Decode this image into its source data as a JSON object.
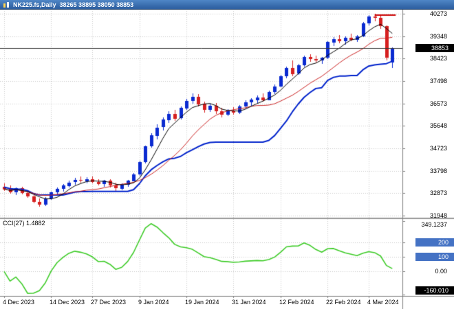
{
  "window": {
    "title": "NK225.fs,Daily",
    "ohlc": "38265 38895 38050 38853"
  },
  "chart_data": {
    "type": "candlestick",
    "symbol": "NK225.fs",
    "timeframe": "Daily",
    "last_ohlc": {
      "open": 38265,
      "high": 38895,
      "low": 38050,
      "close": 38853
    },
    "price_axis": {
      "ticks": [
        40273,
        39348,
        38423,
        37498,
        36573,
        35648,
        34723,
        33798,
        32873,
        31948
      ],
      "current_price": 38853
    },
    "x_ticks": [
      {
        "index": 0,
        "label": "4 Dec 2023"
      },
      {
        "index": 8,
        "label": "14 Dec 2023"
      },
      {
        "index": 15,
        "label": "27 Dec 2023"
      },
      {
        "index": 23,
        "label": "9 Jan 2024"
      },
      {
        "index": 31,
        "label": "19 Jan 2024"
      },
      {
        "index": 39,
        "label": "31 Jan 2024"
      },
      {
        "index": 47,
        "label": "12 Feb 2024"
      },
      {
        "index": 55,
        "label": "22 Feb 2024"
      },
      {
        "index": 62,
        "label": "4 Mar 2024"
      }
    ],
    "candles": [
      [
        33150,
        33270,
        32980,
        33050
      ],
      [
        33050,
        33180,
        32850,
        32920
      ],
      [
        32920,
        33120,
        32800,
        33080
      ],
      [
        33080,
        33150,
        32820,
        32880
      ],
      [
        32880,
        32980,
        32680,
        32740
      ],
      [
        32740,
        32800,
        32450,
        32520
      ],
      [
        32520,
        32650,
        32330,
        32400
      ],
      [
        32400,
        32700,
        32350,
        32650
      ],
      [
        32650,
        32950,
        32600,
        32900
      ],
      [
        32900,
        33100,
        32820,
        33050
      ],
      [
        33050,
        33250,
        32950,
        33180
      ],
      [
        33180,
        33380,
        33100,
        33320
      ],
      [
        33320,
        33500,
        33220,
        33410
      ],
      [
        33410,
        33550,
        33300,
        33380
      ],
      [
        33380,
        33520,
        33280,
        33460
      ],
      [
        33460,
        33560,
        33280,
        33340
      ],
      [
        33340,
        33440,
        33180,
        33250
      ],
      [
        33250,
        33420,
        33150,
        33380
      ],
      [
        33380,
        33450,
        33100,
        33180
      ],
      [
        33180,
        33300,
        32980,
        33060
      ],
      [
        33060,
        33280,
        33000,
        33220
      ],
      [
        33220,
        33420,
        33150,
        33380
      ],
      [
        33380,
        33700,
        33350,
        33650
      ],
      [
        33650,
        34200,
        33600,
        34150
      ],
      [
        34150,
        34850,
        34100,
        34800
      ],
      [
        34800,
        35350,
        34750,
        35250
      ],
      [
        35250,
        35700,
        35100,
        35580
      ],
      [
        35580,
        36000,
        35450,
        35900
      ],
      [
        35900,
        36240,
        35780,
        36150
      ],
      [
        36150,
        36300,
        35850,
        35950
      ],
      [
        35950,
        36450,
        35900,
        36380
      ],
      [
        36380,
        36750,
        36300,
        36680
      ],
      [
        36680,
        36980,
        36550,
        36850
      ],
      [
        36850,
        36950,
        36450,
        36550
      ],
      [
        36550,
        36650,
        36200,
        36300
      ],
      [
        36300,
        36550,
        36220,
        36480
      ],
      [
        36480,
        36600,
        36150,
        36250
      ],
      [
        36250,
        36400,
        36000,
        36120
      ],
      [
        36120,
        36350,
        36050,
        36280
      ],
      [
        36280,
        36420,
        36100,
        36200
      ],
      [
        36200,
        36500,
        36150,
        36450
      ],
      [
        36450,
        36700,
        36350,
        36620
      ],
      [
        36620,
        36800,
        36480,
        36730
      ],
      [
        36730,
        36900,
        36600,
        36830
      ],
      [
        36830,
        36980,
        36650,
        36720
      ],
      [
        36720,
        37100,
        36700,
        37050
      ],
      [
        37050,
        37350,
        36950,
        37280
      ],
      [
        37280,
        37750,
        37250,
        37700
      ],
      [
        37700,
        38100,
        37600,
        38050
      ],
      [
        38050,
        38350,
        37700,
        37800
      ],
      [
        37800,
        38200,
        37750,
        38150
      ],
      [
        38150,
        38550,
        38100,
        38480
      ],
      [
        38480,
        38600,
        38300,
        38400
      ],
      [
        38400,
        38550,
        38250,
        38350
      ],
      [
        38350,
        38500,
        38200,
        38450
      ],
      [
        38450,
        39150,
        38400,
        39100
      ],
      [
        39100,
        39300,
        38950,
        39230
      ],
      [
        39230,
        39400,
        39050,
        39150
      ],
      [
        39150,
        39350,
        39000,
        39280
      ],
      [
        39280,
        39450,
        39150,
        39200
      ],
      [
        39200,
        39400,
        39100,
        39340
      ],
      [
        39340,
        39920,
        39300,
        39880
      ],
      [
        39880,
        40230,
        39800,
        40150
      ],
      [
        40150,
        40280,
        39950,
        40090
      ],
      [
        40090,
        40180,
        39650,
        39750
      ],
      [
        39750,
        39800,
        38350,
        38450
      ],
      [
        38265,
        38895,
        38050,
        38853
      ]
    ],
    "overlays": [
      {
        "name": "fast-ma",
        "type": "sma",
        "period": 5,
        "color": "#000000",
        "width": 1
      },
      {
        "name": "slow-ma",
        "type": "sma",
        "period": 13,
        "color": "#CC2222",
        "width": 1
      },
      {
        "name": "baseline",
        "type": "midrange",
        "period": 26,
        "color": "#0022CC",
        "width": 2
      }
    ],
    "price_line": {
      "value": 38853,
      "color": "#333333"
    },
    "red_segment": {
      "price": 40230,
      "from_index": 63,
      "to_index": 66,
      "color": "#CC0000"
    },
    "colors": {
      "bull": "#0A2AD0",
      "bear": "#D62020",
      "grid": "#C9C9C9",
      "background": "#FFFFFF",
      "axis_box_bg": "#000000",
      "level_box_bg": "#4472C4"
    },
    "cci": {
      "label": "CCI(27) 1.4882",
      "period": 27,
      "value": 1.4882,
      "color": "#3ECC28",
      "axis_max_label": "349.1237",
      "axis_min_label": "-160.010",
      "axis_max": 349.1237,
      "axis_min": -160.01,
      "zero_label": "0.00",
      "level_labels": [
        "200",
        "100"
      ],
      "levels": [
        200,
        100,
        0
      ]
    }
  }
}
